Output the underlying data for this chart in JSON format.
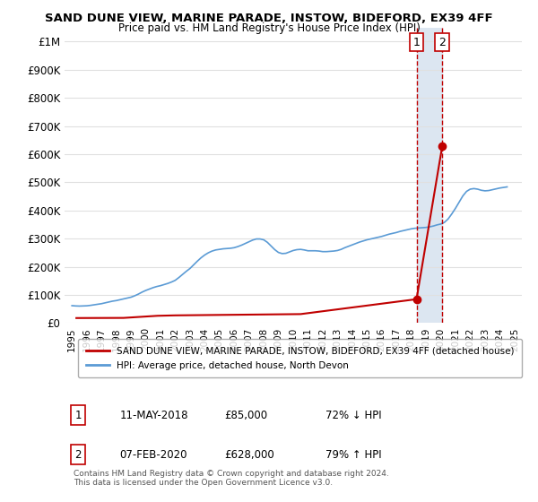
{
  "title": "SAND DUNE VIEW, MARINE PARADE, INSTOW, BIDEFORD, EX39 4FF",
  "subtitle": "Price paid vs. HM Land Registry's House Price Index (HPI)",
  "ylabel_ticks": [
    "£0",
    "£100K",
    "£200K",
    "£300K",
    "£400K",
    "£500K",
    "£600K",
    "£700K",
    "£800K",
    "£900K",
    "£1M"
  ],
  "ytick_values": [
    0,
    100000,
    200000,
    300000,
    400000,
    500000,
    600000,
    700000,
    800000,
    900000,
    1000000
  ],
  "ylim": [
    0,
    1050000
  ],
  "xlim_start": 1994.5,
  "xlim_end": 2025.5,
  "xticks": [
    1995,
    1996,
    1997,
    1998,
    1999,
    2000,
    2001,
    2002,
    2003,
    2004,
    2005,
    2006,
    2007,
    2008,
    2009,
    2010,
    2011,
    2012,
    2013,
    2014,
    2015,
    2016,
    2017,
    2018,
    2019,
    2020,
    2021,
    2022,
    2023,
    2024,
    2025
  ],
  "hpi_color": "#5b9bd5",
  "price_color": "#c00000",
  "vline_color": "#c00000",
  "vline_style": "--",
  "highlight_color": "#dce6f1",
  "sale1_x": 2018.36,
  "sale1_y": 85000,
  "sale1_label": "1",
  "sale2_x": 2020.1,
  "sale2_y": 628000,
  "sale2_label": "2",
  "vline1_x": 2018.36,
  "vline2_x": 2020.1,
  "legend_label1": "SAND DUNE VIEW, MARINE PARADE, INSTOW, BIDEFORD, EX39 4FF (detached house)",
  "legend_label2": "HPI: Average price, detached house, North Devon",
  "table_row1": [
    "1",
    "11-MAY-2018",
    "£85,000",
    "72% ↓ HPI"
  ],
  "table_row2": [
    "2",
    "07-FEB-2020",
    "£628,000",
    "79% ↑ HPI"
  ],
  "footnote": "Contains HM Land Registry data © Crown copyright and database right 2024.\nThis data is licensed under the Open Government Licence v3.0.",
  "background_color": "#ffffff",
  "grid_color": "#e0e0e0",
  "hpi_data_x": [
    1995.0,
    1995.25,
    1995.5,
    1995.75,
    1996.0,
    1996.25,
    1996.5,
    1996.75,
    1997.0,
    1997.25,
    1997.5,
    1997.75,
    1998.0,
    1998.25,
    1998.5,
    1998.75,
    1999.0,
    1999.25,
    1999.5,
    1999.75,
    2000.0,
    2000.25,
    2000.5,
    2000.75,
    2001.0,
    2001.25,
    2001.5,
    2001.75,
    2002.0,
    2002.25,
    2002.5,
    2002.75,
    2003.0,
    2003.25,
    2003.5,
    2003.75,
    2004.0,
    2004.25,
    2004.5,
    2004.75,
    2005.0,
    2005.25,
    2005.5,
    2005.75,
    2006.0,
    2006.25,
    2006.5,
    2006.75,
    2007.0,
    2007.25,
    2007.5,
    2007.75,
    2008.0,
    2008.25,
    2008.5,
    2008.75,
    2009.0,
    2009.25,
    2009.5,
    2009.75,
    2010.0,
    2010.25,
    2010.5,
    2010.75,
    2011.0,
    2011.25,
    2011.5,
    2011.75,
    2012.0,
    2012.25,
    2012.5,
    2012.75,
    2013.0,
    2013.25,
    2013.5,
    2013.75,
    2014.0,
    2014.25,
    2014.5,
    2014.75,
    2015.0,
    2015.25,
    2015.5,
    2015.75,
    2016.0,
    2016.25,
    2016.5,
    2016.75,
    2017.0,
    2017.25,
    2017.5,
    2017.75,
    2018.0,
    2018.25,
    2018.5,
    2018.75,
    2019.0,
    2019.25,
    2019.5,
    2019.75,
    2020.0,
    2020.25,
    2020.5,
    2020.75,
    2021.0,
    2021.25,
    2021.5,
    2021.75,
    2022.0,
    2022.25,
    2022.5,
    2022.75,
    2023.0,
    2023.25,
    2023.5,
    2023.75,
    2024.0,
    2024.25,
    2024.5
  ],
  "hpi_data_y": [
    62000,
    61000,
    60500,
    61000,
    61500,
    63000,
    65000,
    67000,
    69000,
    72000,
    75000,
    78000,
    80000,
    83000,
    86000,
    89000,
    92000,
    97000,
    103000,
    110000,
    116000,
    121000,
    126000,
    130000,
    133000,
    137000,
    141000,
    146000,
    152000,
    162000,
    173000,
    184000,
    194000,
    207000,
    220000,
    232000,
    242000,
    250000,
    256000,
    260000,
    262000,
    264000,
    265000,
    266000,
    268000,
    272000,
    277000,
    283000,
    289000,
    295000,
    299000,
    299000,
    296000,
    287000,
    274000,
    261000,
    251000,
    247000,
    248000,
    253000,
    258000,
    261000,
    262000,
    260000,
    257000,
    257000,
    257000,
    256000,
    254000,
    254000,
    255000,
    256000,
    258000,
    262000,
    268000,
    273000,
    278000,
    283000,
    288000,
    292000,
    296000,
    299000,
    302000,
    305000,
    308000,
    312000,
    316000,
    319000,
    322000,
    326000,
    329000,
    332000,
    335000,
    337000,
    338000,
    339000,
    340000,
    342000,
    345000,
    349000,
    352000,
    358000,
    370000,
    388000,
    408000,
    430000,
    452000,
    468000,
    476000,
    478000,
    476000,
    472000,
    470000,
    471000,
    474000,
    477000,
    480000,
    482000,
    484000
  ],
  "price_data_x": [
    1995.3,
    1998.5,
    2000.8,
    2002.0,
    2010.5,
    2018.36,
    2020.1
  ],
  "price_data_y": [
    18000,
    18500,
    26000,
    27500,
    32000,
    85000,
    628000
  ]
}
